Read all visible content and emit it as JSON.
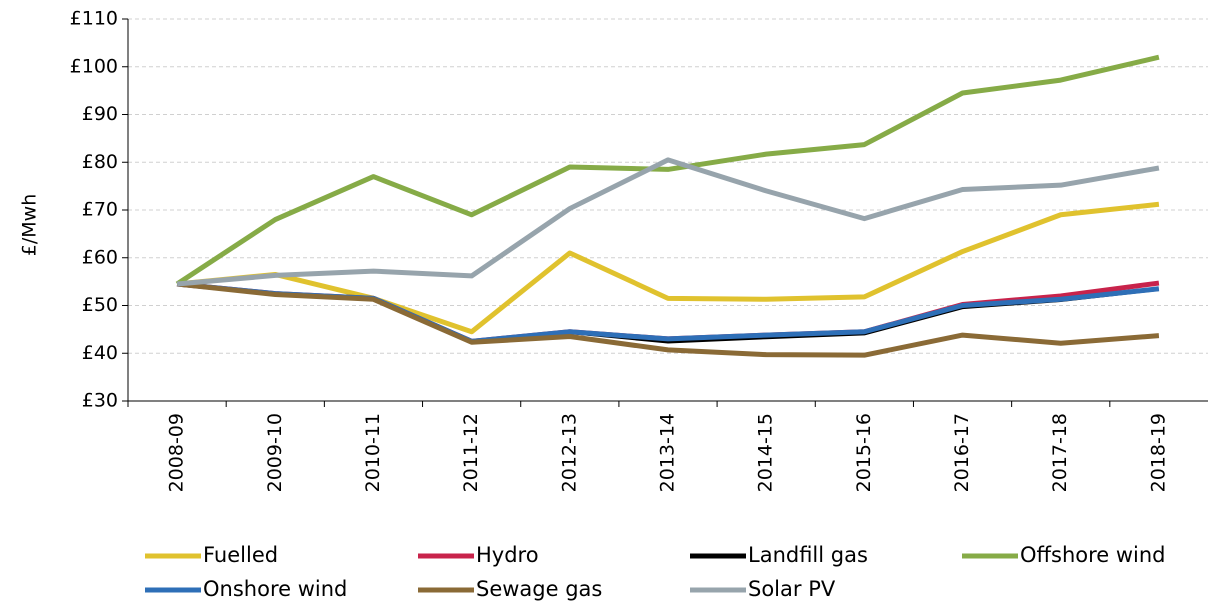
{
  "chart_data": {
    "type": "line",
    "y_label": "£/Mwh",
    "categories": [
      "2008-09",
      "2009-10",
      "2010-11",
      "2011-12",
      "2012-13",
      "2013-14",
      "2014-15",
      "2015-16",
      "2016-17",
      "2017-18",
      "2018-19"
    ],
    "series": [
      {
        "name": "Fuelled",
        "color": "#e0c22e",
        "values": [
          54.5,
          56.5,
          51.5,
          44.5,
          61,
          51.5,
          51.3,
          51.8,
          61.3,
          69,
          71.2
        ]
      },
      {
        "name": "Hydro",
        "color": "#c8234b",
        "values": [
          54.5,
          52.5,
          51.5,
          42.5,
          44.5,
          43,
          43.8,
          44.5,
          50.2,
          52,
          54.7
        ]
      },
      {
        "name": "Landfill gas",
        "color": "#000000",
        "values": [
          54.5,
          52.5,
          51.3,
          42.5,
          44.3,
          42.3,
          43.2,
          44,
          49.5,
          51,
          53.3
        ]
      },
      {
        "name": "Offshore wind",
        "color": "#86ab47",
        "values": [
          54.5,
          68,
          77,
          69,
          79,
          78.5,
          81.7,
          83.7,
          94.5,
          97.2,
          102
        ]
      },
      {
        "name": "Onshore wind",
        "color": "#2e6fb7",
        "values": [
          54.5,
          52.5,
          51.5,
          42.5,
          44.5,
          43,
          43.8,
          44.5,
          50,
          51.3,
          53.5
        ]
      },
      {
        "name": "Sewage gas",
        "color": "#8a6a36",
        "values": [
          54.5,
          52.3,
          51.3,
          42.3,
          43.5,
          40.7,
          39.7,
          39.6,
          43.8,
          42.1,
          43.7
        ]
      },
      {
        "name": "Solar PV",
        "color": "#97a4ac",
        "values": [
          54.5,
          56.3,
          57.2,
          56.2,
          70.3,
          80.5,
          74,
          68.2,
          74.3,
          75.2,
          78.8
        ]
      }
    ],
    "ylim": [
      30,
      110
    ],
    "yticks": [
      {
        "value": 30,
        "label": "£30"
      },
      {
        "value": 40,
        "label": "£40"
      },
      {
        "value": 50,
        "label": "£50"
      },
      {
        "value": 60,
        "label": "£60"
      },
      {
        "value": 70,
        "label": "£70"
      },
      {
        "value": 80,
        "label": "£80"
      },
      {
        "value": 90,
        "label": "£90"
      },
      {
        "value": 100,
        "label": "£100"
      },
      {
        "value": 110,
        "label": "£110"
      }
    ],
    "grid": true,
    "legend": "bottom"
  }
}
